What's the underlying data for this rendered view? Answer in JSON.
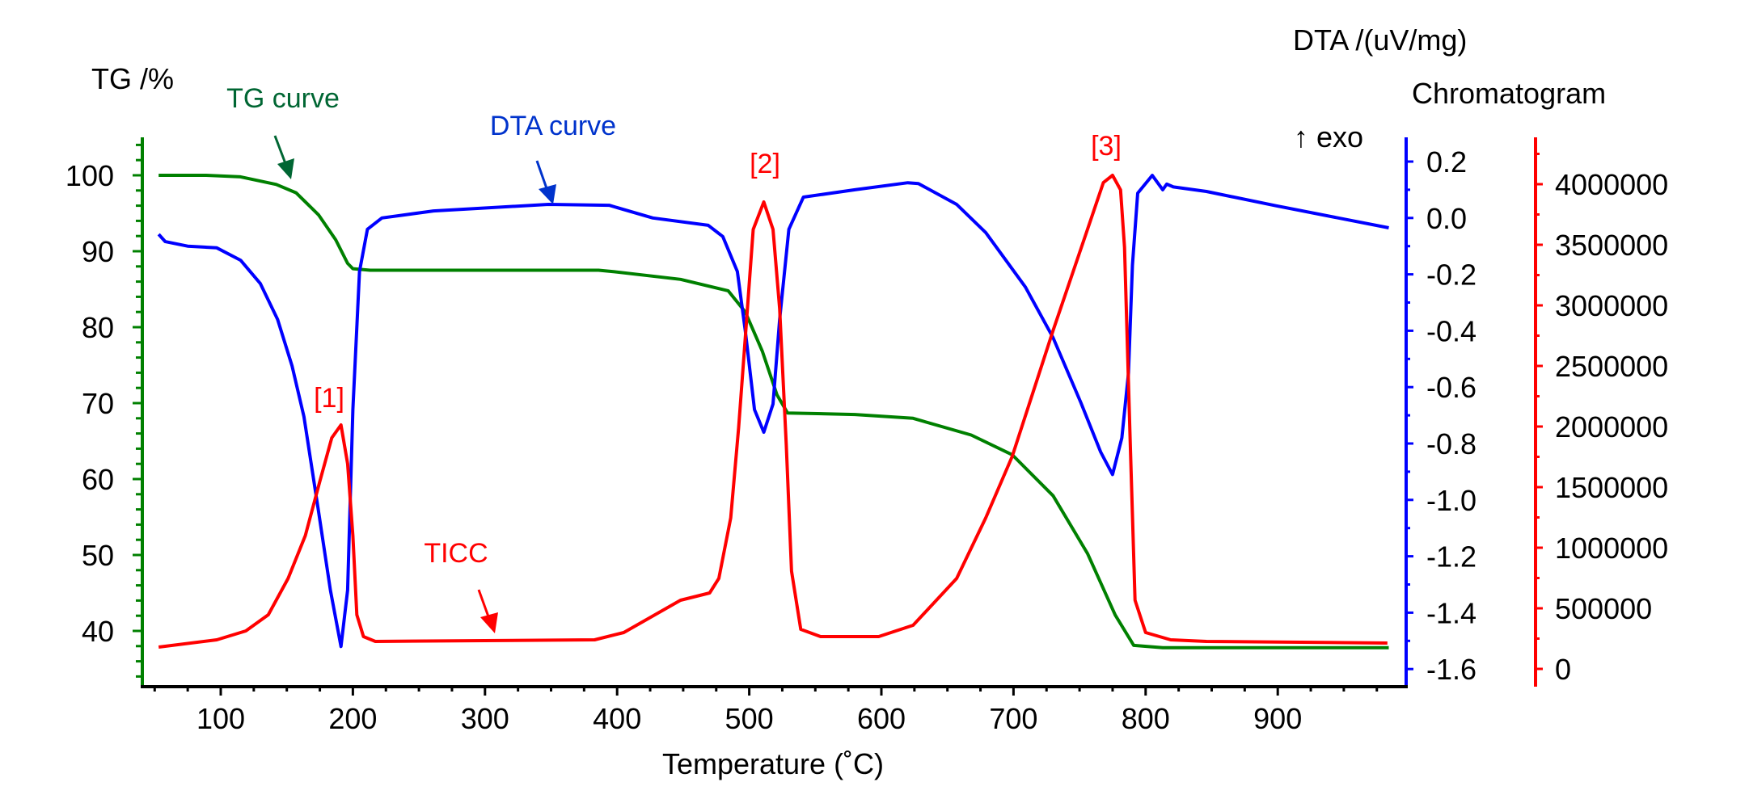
{
  "chart_data": {
    "type": "line",
    "xlabel": "Temperature (˚C)",
    "xlim": [
      40,
      1000
    ],
    "xticks": [
      100,
      200,
      300,
      400,
      500,
      600,
      700,
      800,
      900
    ],
    "grid": false,
    "axes": {
      "tg": {
        "label": "TG /%",
        "ylim": [
          33,
          105
        ],
        "ticks": [
          40,
          50,
          60,
          70,
          80,
          90,
          100
        ],
        "color": "#008000",
        "side": "left"
      },
      "dta": {
        "label": "DTA /(uV/mg)",
        "note": "↑ exo",
        "ylim": [
          -1.66,
          0.29
        ],
        "ticks": [
          "0.2",
          "0.0",
          "-0.2",
          "-0.4",
          "-0.6",
          "-0.8",
          "-1.0",
          "-1.2",
          "-1.4",
          "-1.6"
        ],
        "color": "#0000ff",
        "side": "right"
      },
      "chrom": {
        "label": "Chromatogram",
        "ylim": [
          -150000,
          4400000
        ],
        "ticks": [
          "4000000",
          "3500000",
          "3000000",
          "2500000",
          "2000000",
          "1500000",
          "1000000",
          "500000",
          "0"
        ],
        "color": "#ff0000",
        "side": "right-outer"
      }
    },
    "series": [
      {
        "name": "TG curve",
        "axis": "tg",
        "color": "#008000",
        "points": [
          [
            53,
            100
          ],
          [
            89,
            100
          ],
          [
            115,
            99.8
          ],
          [
            142,
            98.8
          ],
          [
            157,
            97.7
          ],
          [
            174,
            94.8
          ],
          [
            187,
            91.5
          ],
          [
            196,
            88.4
          ],
          [
            200,
            87.7
          ],
          [
            213,
            87.5
          ],
          [
            386,
            87.5
          ],
          [
            398,
            87.3
          ],
          [
            448,
            86.3
          ],
          [
            484,
            84.8
          ],
          [
            497,
            82
          ],
          [
            510,
            76.8
          ],
          [
            521,
            71.1
          ],
          [
            529,
            68.7
          ],
          [
            580,
            68.5
          ],
          [
            624,
            68.0
          ],
          [
            668,
            65.8
          ],
          [
            699,
            63.2
          ],
          [
            730,
            57.8
          ],
          [
            756,
            50.2
          ],
          [
            777,
            42.1
          ],
          [
            791,
            38.1
          ],
          [
            813,
            37.8
          ],
          [
            984,
            37.8
          ]
        ]
      },
      {
        "name": "DTA curve",
        "axis": "dta",
        "color": "#0000ff",
        "points": [
          [
            53,
            -0.058
          ],
          [
            58,
            -0.084
          ],
          [
            75,
            -0.1
          ],
          [
            97,
            -0.106
          ],
          [
            115,
            -0.15
          ],
          [
            130,
            -0.233
          ],
          [
            143,
            -0.36
          ],
          [
            154,
            -0.525
          ],
          [
            163,
            -0.705
          ],
          [
            174,
            -1.04
          ],
          [
            183,
            -1.32
          ],
          [
            191,
            -1.52
          ],
          [
            196,
            -1.32
          ],
          [
            200,
            -0.68
          ],
          [
            205,
            -0.19
          ],
          [
            211,
            -0.04
          ],
          [
            222,
            0.0
          ],
          [
            261,
            0.025
          ],
          [
            348,
            0.048
          ],
          [
            394,
            0.045
          ],
          [
            427,
            0.0
          ],
          [
            469,
            -0.026
          ],
          [
            480,
            -0.066
          ],
          [
            491,
            -0.19
          ],
          [
            497,
            -0.4
          ],
          [
            504,
            -0.68
          ],
          [
            511,
            -0.76
          ],
          [
            518,
            -0.66
          ],
          [
            523,
            -0.36
          ],
          [
            530,
            -0.04
          ],
          [
            541,
            0.074
          ],
          [
            580,
            0.1
          ],
          [
            620,
            0.125
          ],
          [
            628,
            0.122
          ],
          [
            657,
            0.048
          ],
          [
            679,
            -0.052
          ],
          [
            709,
            -0.245
          ],
          [
            730,
            -0.425
          ],
          [
            751,
            -0.655
          ],
          [
            766,
            -0.83
          ],
          [
            775,
            -0.91
          ],
          [
            782,
            -0.78
          ],
          [
            787,
            -0.55
          ],
          [
            790,
            -0.167
          ],
          [
            794,
            0.088
          ],
          [
            805,
            0.151
          ],
          [
            813,
            0.1
          ],
          [
            816,
            0.12
          ],
          [
            821,
            0.11
          ],
          [
            846,
            0.094
          ],
          [
            899,
            0.043
          ],
          [
            984,
            -0.035
          ]
        ]
      },
      {
        "name": "TICC",
        "axis": "chrom",
        "color": "#ff0000",
        "points": [
          [
            53,
            180000
          ],
          [
            97,
            240000
          ],
          [
            119,
            313000
          ],
          [
            136,
            447000
          ],
          [
            151,
            747000
          ],
          [
            164,
            1100000
          ],
          [
            175,
            1547000
          ],
          [
            184,
            1907000
          ],
          [
            191,
            2013000
          ],
          [
            196,
            1693000
          ],
          [
            200,
            1100000
          ],
          [
            203,
            447000
          ],
          [
            208,
            267000
          ],
          [
            217,
            227000
          ],
          [
            383,
            240000
          ],
          [
            405,
            300000
          ],
          [
            448,
            567000
          ],
          [
            470,
            627000
          ],
          [
            477,
            747000
          ],
          [
            486,
            1247000
          ],
          [
            492,
            1993000
          ],
          [
            497,
            2733000
          ],
          [
            503,
            3627000
          ],
          [
            511,
            3853000
          ],
          [
            518,
            3627000
          ],
          [
            523,
            2973000
          ],
          [
            528,
            1847000
          ],
          [
            532,
            807000
          ],
          [
            539,
            327000
          ],
          [
            554,
            267000
          ],
          [
            598,
            267000
          ],
          [
            624,
            360000
          ],
          [
            657,
            747000
          ],
          [
            679,
            1247000
          ],
          [
            699,
            1753000
          ],
          [
            730,
            2793000
          ],
          [
            756,
            3627000
          ],
          [
            768,
            4013000
          ],
          [
            775,
            4073000
          ],
          [
            781,
            3953000
          ],
          [
            784,
            3480000
          ],
          [
            788,
            1993000
          ],
          [
            792,
            567000
          ],
          [
            800,
            300000
          ],
          [
            819,
            240000
          ],
          [
            846,
            227000
          ],
          [
            983,
            213000
          ]
        ]
      }
    ],
    "annotations": [
      {
        "text": "TG curve",
        "color": "#006633"
      },
      {
        "text": "DTA curve",
        "color": "#0033cc"
      },
      {
        "text": "TICC",
        "color": "#ff0000"
      },
      {
        "text": "[1]",
        "color": "#ff0000"
      },
      {
        "text": "[2]",
        "color": "#ff0000"
      },
      {
        "text": "[3]",
        "color": "#ff0000"
      }
    ]
  }
}
